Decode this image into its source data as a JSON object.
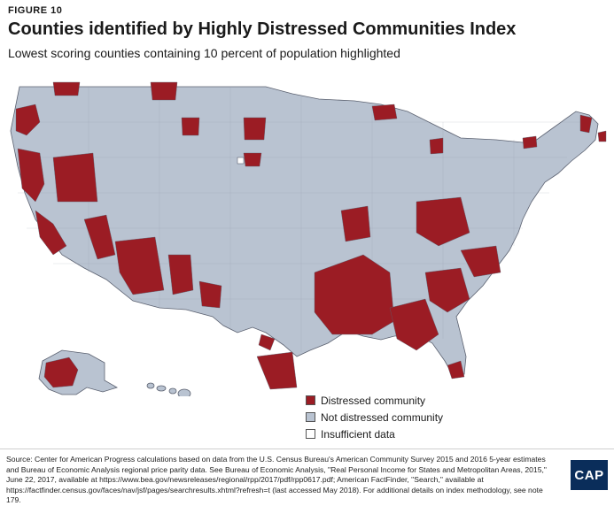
{
  "figure_label": "FIGURE 10",
  "title": "Counties identified by Highly Distressed Communities Index",
  "subtitle": "Lowest scoring counties containing 10 percent of population highlighted",
  "colors": {
    "distressed": "#9b1c24",
    "not_distressed": "#b9c3d1",
    "insufficient": "#ffffff",
    "border": "#5b6170"
  },
  "legend": [
    {
      "label": "Distressed community",
      "color": "#9b1c24"
    },
    {
      "label": "Not distressed community",
      "color": "#b9c3d1"
    },
    {
      "label": "Insufficient data",
      "color": "#ffffff"
    }
  ],
  "source": "Source: Center for American Progress calculations based on data from the U.S. Census Bureau's American Community Survey 2015 and 2016 5-year estimates and Bureau of Economic Analysis regional price parity data. See Bureau of Economic Analysis, \"Real Personal Income for States and Metropolitan Areas, 2015,\" June 22, 2017, available at https://www.bea.gov/newsreleases/regional/rpp/2017/pdf/rpp0617.pdf; American FactFinder, \"Search,\" available at https://factfinder.census.gov/faces/nav/jsf/pages/searchresults.xhtml?refresh=t (last accessed May 2018). For additional details on index methodology, see note 179.",
  "logo_text": "CAP"
}
